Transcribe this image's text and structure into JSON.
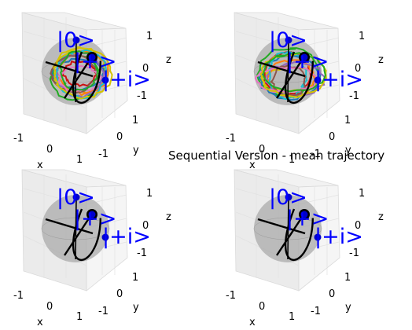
{
  "figure": {
    "title": "Sequential Version - mean trajectory"
  },
  "colors": {
    "sphere": "#a8a8a8",
    "state_marker": "#0000cc",
    "ket_label": "#0000ff",
    "mean_trajectory": "#000000",
    "trajectory_palette": [
      "#d4c300",
      "#22aa22",
      "#cc1111",
      "#1f77b4",
      "#ff7f0e",
      "#9467bd",
      "#17becf",
      "#8c564b",
      "#e377c2"
    ]
  },
  "chart_data": [
    {
      "type": "scatter",
      "subplot": "top-left",
      "projection": "3d",
      "xlabel": "x",
      "ylabel": "y",
      "zlabel": "z",
      "xlim": [
        -1,
        1
      ],
      "ylim": [
        -1,
        1
      ],
      "zlim": [
        -1,
        1
      ],
      "xticks": [
        "-1",
        "0",
        "1"
      ],
      "yticks": [
        "-1",
        "0",
        "1"
      ],
      "zticks": [
        "-1",
        "0",
        "1"
      ],
      "state_labels": [
        "|0>",
        "|+>",
        "|+i>"
      ],
      "state_points": [
        [
          0,
          0,
          1
        ],
        [
          1,
          0,
          0
        ],
        [
          0,
          1,
          0
        ]
      ],
      "shows_sample_trajectories": true,
      "grid": true
    },
    {
      "type": "scatter",
      "subplot": "top-right",
      "projection": "3d",
      "xlabel": "x",
      "ylabel": "y",
      "zlabel": "z",
      "xlim": [
        -1,
        1
      ],
      "ylim": [
        -1,
        1
      ],
      "zlim": [
        -1,
        1
      ],
      "xticks": [
        "-1",
        "0",
        "1"
      ],
      "yticks": [
        "-1",
        "0",
        "1"
      ],
      "zticks": [
        "-1",
        "0",
        "1"
      ],
      "state_labels": [
        "|0>",
        "|+>",
        "|+i>"
      ],
      "state_points": [
        [
          0,
          0,
          1
        ],
        [
          1,
          0,
          0
        ],
        [
          0,
          1,
          0
        ]
      ],
      "shows_sample_trajectories": true,
      "grid": true
    },
    {
      "type": "line",
      "subplot": "bottom-left",
      "projection": "3d",
      "xlabel": "x",
      "ylabel": "y",
      "zlabel": "z",
      "xlim": [
        -1,
        1
      ],
      "ylim": [
        -1,
        1
      ],
      "zlim": [
        -1,
        1
      ],
      "xticks": [
        "-1",
        "0",
        "1"
      ],
      "yticks": [
        "-1",
        "0",
        "1"
      ],
      "zticks": [
        "-1",
        "0",
        "1"
      ],
      "state_labels": [
        "|0>",
        "|+>",
        "|+i>"
      ],
      "state_points": [
        [
          0,
          0,
          1
        ],
        [
          1,
          0,
          0
        ],
        [
          0,
          1,
          0
        ]
      ],
      "shows_sample_trajectories": false,
      "grid": true
    },
    {
      "type": "line",
      "subplot": "bottom-right",
      "projection": "3d",
      "xlabel": "x",
      "ylabel": "y",
      "zlabel": "z",
      "xlim": [
        -1,
        1
      ],
      "ylim": [
        -1,
        1
      ],
      "zlim": [
        -1,
        1
      ],
      "xticks": [
        "-1",
        "0",
        "1"
      ],
      "yticks": [
        "-1",
        "0",
        "1"
      ],
      "zticks": [
        "-1",
        "0",
        "1"
      ],
      "state_labels": [
        "|0>",
        "|+>",
        "|+i>"
      ],
      "state_points": [
        [
          0,
          0,
          1
        ],
        [
          1,
          0,
          0
        ],
        [
          0,
          1,
          0
        ]
      ],
      "shows_sample_trajectories": false,
      "grid": true
    }
  ]
}
